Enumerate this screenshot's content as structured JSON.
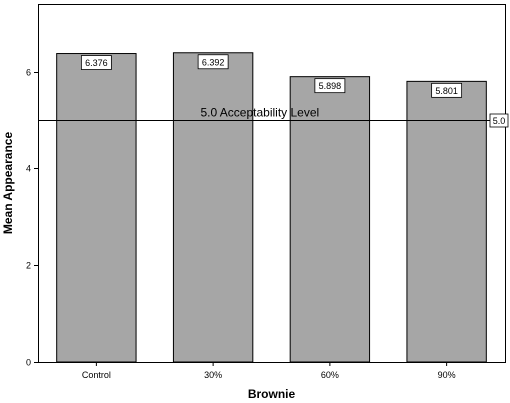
{
  "chart_data": {
    "type": "bar",
    "categories": [
      "Control",
      "30%",
      "60%",
      "90%"
    ],
    "values": [
      6.376,
      6.392,
      5.898,
      5.801
    ],
    "data_labels": [
      "6.376",
      "6.392",
      "5.898",
      "5.801"
    ],
    "title": "",
    "xlabel": "Brownie",
    "ylabel": "Mean Appearance",
    "ylim": [
      0,
      7.4
    ],
    "yticks": [
      0,
      2,
      4,
      6
    ],
    "ytick_labels": [
      "0",
      "2",
      "4",
      "6"
    ],
    "grid": false,
    "reference_line": {
      "value": 5.0,
      "label": "5.0 Acceptability Level",
      "value_label": "5.0"
    },
    "colors": {
      "bar_fill": "#a6a6a6",
      "bar_stroke": "#000000",
      "label_box": "#ffffff",
      "axis": "#000000"
    }
  }
}
